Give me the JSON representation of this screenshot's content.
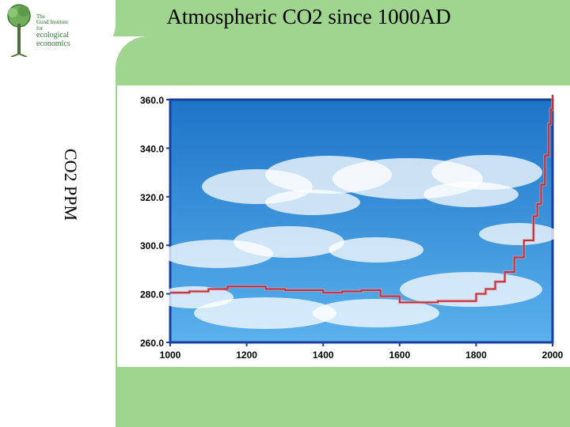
{
  "slide": {
    "title": "Atmospheric CO2 since 1000AD",
    "logo": {
      "line1": "The",
      "line2": "Gund Institute",
      "line3": "for",
      "line4": "ecological",
      "line5": "economics",
      "icon": "tree-icon"
    }
  },
  "colors": {
    "band": "#9fd58e",
    "sky_top": "#1e74c8",
    "sky_bottom": "#5ab1ec",
    "line": "#c0303a",
    "frame": "#1a3f9a"
  },
  "chart_data": {
    "type": "line",
    "title": "",
    "xlabel": "",
    "ylabel": "CO2 PPM",
    "xlim": [
      1000,
      2000
    ],
    "ylim": [
      260,
      360
    ],
    "x_ticks": [
      "1000",
      "1200",
      "1400",
      "1600",
      "1800",
      "2000"
    ],
    "y_ticks": [
      "360.0",
      "340.0",
      "320.0",
      "300.0",
      "280.0",
      "260.0"
    ],
    "series": [
      {
        "x": [
          1000,
          1050,
          1100,
          1150,
          1200,
          1250,
          1300,
          1350,
          1400,
          1450,
          1500,
          1550,
          1600,
          1650,
          1700,
          1750,
          1800,
          1825,
          1850,
          1875,
          1900,
          1925,
          1950,
          1960,
          1970,
          1980,
          1990,
          1995,
          2000
        ],
        "y": [
          280.5,
          281,
          282,
          283,
          283,
          282,
          281.5,
          281.5,
          280.5,
          281,
          281.5,
          279,
          276.5,
          276.5,
          277,
          277,
          280,
          282,
          285,
          289,
          295,
          302,
          312,
          317,
          325,
          337,
          350,
          356,
          362
        ]
      }
    ]
  }
}
